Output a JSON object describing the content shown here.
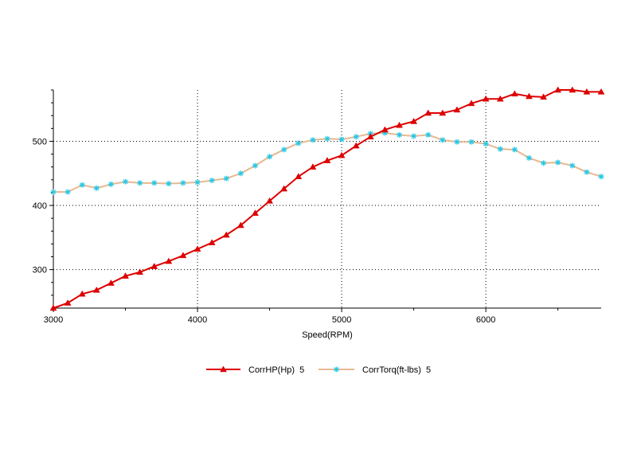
{
  "chart_data": {
    "type": "line",
    "xlabel": "Speed(RPM)",
    "ylabel": "",
    "xlim": [
      3000,
      6800
    ],
    "ylim": [
      240,
      580
    ],
    "xticks": [
      3000,
      4000,
      5000,
      6000
    ],
    "xtick_labels": [
      "3000",
      "4000",
      "5000",
      "6000"
    ],
    "yticks": [
      300,
      400,
      500
    ],
    "ytick_labels": [
      "300",
      "400",
      "500"
    ],
    "grid": true,
    "legend_position": "bottom",
    "x": [
      3000,
      3100,
      3200,
      3300,
      3400,
      3500,
      3600,
      3700,
      3800,
      3900,
      4000,
      4100,
      4200,
      4300,
      4400,
      4500,
      4600,
      4700,
      4800,
      4900,
      5000,
      5100,
      5200,
      5300,
      5400,
      5500,
      5600,
      5700,
      5800,
      5900,
      6000,
      6100,
      6200,
      6300,
      6400,
      6500,
      6600,
      6700,
      6800
    ],
    "series": [
      {
        "name": "CorrHP(Hp)  5",
        "color": "#dd0000",
        "marker": "triangle",
        "values": [
          240,
          248,
          262,
          268,
          279,
          290,
          296,
          305,
          313,
          322,
          332,
          342,
          354,
          369,
          388,
          407,
          426,
          445,
          460,
          470,
          478,
          493,
          507,
          518,
          525,
          531,
          544,
          544,
          549,
          559,
          566,
          566,
          574,
          570,
          569,
          580,
          580,
          577,
          577
        ]
      },
      {
        "name": "CorrTorq(ft-lbs)  5",
        "color": "#e8b890",
        "marker_color": "#22c8e8",
        "marker": "asterisk",
        "values": [
          421,
          421,
          432,
          427,
          433,
          437,
          435,
          435,
          434,
          435,
          436,
          439,
          442,
          450,
          462,
          476,
          487,
          497,
          502,
          504,
          503,
          507,
          512,
          513,
          510,
          508,
          510,
          502,
          499,
          499,
          496,
          488,
          487,
          474,
          466,
          467,
          462,
          452,
          445
        ]
      }
    ]
  }
}
